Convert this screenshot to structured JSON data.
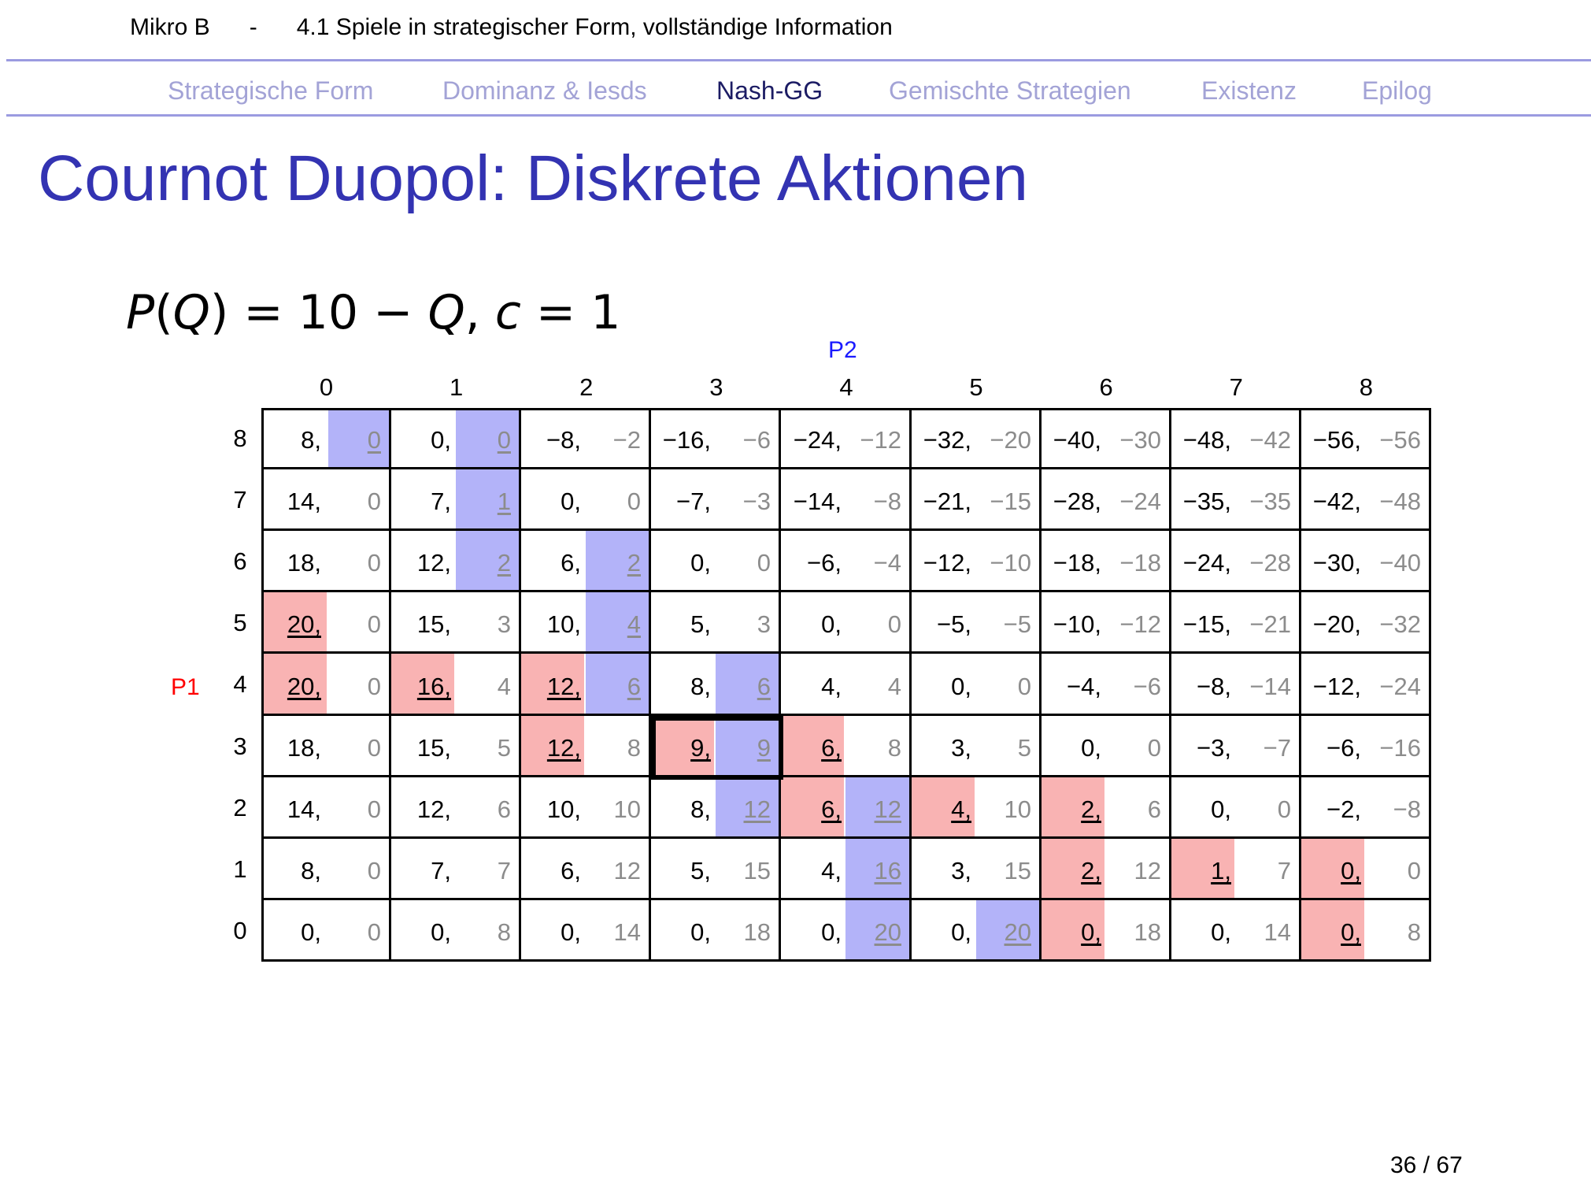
{
  "header": {
    "course": "Mikro B",
    "separator": "-",
    "chapter": "4.1 Spiele in strategischer Form, vollständige Information"
  },
  "nav": [
    {
      "label": "Strategische Form",
      "active": false
    },
    {
      "label": "Dominanz & Iesds",
      "active": false
    },
    {
      "label": "Nash-GG",
      "active": true
    },
    {
      "label": "Gemischte Strategien",
      "active": false
    },
    {
      "label": "Existenz",
      "active": false
    },
    {
      "label": "Epilog",
      "active": false
    }
  ],
  "title": "Cournot Duopol: Diskrete Aktionen",
  "formula": {
    "P": "P",
    "open": "(",
    "Q1": "Q",
    "close": ")",
    "eq1": " = 10 − ",
    "Q2": "Q",
    "comma": ", ",
    "c": "c",
    "eq2": " = 1"
  },
  "players": {
    "p1": "P1",
    "p2": "P2"
  },
  "columns": [
    "0",
    "1",
    "2",
    "3",
    "4",
    "5",
    "6",
    "7",
    "8"
  ],
  "rows": [
    "8",
    "7",
    "6",
    "5",
    "4",
    "3",
    "2",
    "1",
    "0"
  ],
  "payoffs": [
    [
      [
        "8,",
        "0"
      ],
      [
        "0,",
        "0"
      ],
      [
        "−8,",
        "−2"
      ],
      [
        "−16,",
        "−6"
      ],
      [
        "−24,",
        "−12"
      ],
      [
        "−32,",
        "−20"
      ],
      [
        "−40,",
        "−30"
      ],
      [
        "−48,",
        "−42"
      ],
      [
        "−56,",
        "−56"
      ]
    ],
    [
      [
        "14,",
        "0"
      ],
      [
        "7,",
        "1"
      ],
      [
        "0,",
        "0"
      ],
      [
        "−7,",
        "−3"
      ],
      [
        "−14,",
        "−8"
      ],
      [
        "−21,",
        "−15"
      ],
      [
        "−28,",
        "−24"
      ],
      [
        "−35,",
        "−35"
      ],
      [
        "−42,",
        "−48"
      ]
    ],
    [
      [
        "18,",
        "0"
      ],
      [
        "12,",
        "2"
      ],
      [
        "6,",
        "2"
      ],
      [
        "0,",
        "0"
      ],
      [
        "−6,",
        "−4"
      ],
      [
        "−12,",
        "−10"
      ],
      [
        "−18,",
        "−18"
      ],
      [
        "−24,",
        "−28"
      ],
      [
        "−30,",
        "−40"
      ]
    ],
    [
      [
        "20,",
        "0"
      ],
      [
        "15,",
        "3"
      ],
      [
        "10,",
        "4"
      ],
      [
        "5,",
        "3"
      ],
      [
        "0,",
        "0"
      ],
      [
        "−5,",
        "−5"
      ],
      [
        "−10,",
        "−12"
      ],
      [
        "−15,",
        "−21"
      ],
      [
        "−20,",
        "−32"
      ]
    ],
    [
      [
        "20,",
        "0"
      ],
      [
        "16,",
        "4"
      ],
      [
        "12,",
        "6"
      ],
      [
        "8,",
        "6"
      ],
      [
        "4,",
        "4"
      ],
      [
        "0,",
        "0"
      ],
      [
        "−4,",
        "−6"
      ],
      [
        "−8,",
        "−14"
      ],
      [
        "−12,",
        "−24"
      ]
    ],
    [
      [
        "18,",
        "0"
      ],
      [
        "15,",
        "5"
      ],
      [
        "12,",
        "8"
      ],
      [
        "9,",
        "9"
      ],
      [
        "6,",
        "8"
      ],
      [
        "3,",
        "5"
      ],
      [
        "0,",
        "0"
      ],
      [
        "−3,",
        "−7"
      ],
      [
        "−6,",
        "−16"
      ]
    ],
    [
      [
        "14,",
        "0"
      ],
      [
        "12,",
        "6"
      ],
      [
        "10,",
        "10"
      ],
      [
        "8,",
        "12"
      ],
      [
        "6,",
        "12"
      ],
      [
        "4,",
        "10"
      ],
      [
        "2,",
        "6"
      ],
      [
        "0,",
        "0"
      ],
      [
        "−2,",
        "−8"
      ]
    ],
    [
      [
        "8,",
        "0"
      ],
      [
        "7,",
        "7"
      ],
      [
        "6,",
        "12"
      ],
      [
        "5,",
        "15"
      ],
      [
        "4,",
        "16"
      ],
      [
        "3,",
        "15"
      ],
      [
        "2,",
        "12"
      ],
      [
        "1,",
        "7"
      ],
      [
        "0,",
        "0"
      ]
    ],
    [
      [
        "0,",
        "0"
      ],
      [
        "0,",
        "8"
      ],
      [
        "0,",
        "14"
      ],
      [
        "0,",
        "18"
      ],
      [
        "0,",
        "20"
      ],
      [
        "0,",
        "20"
      ],
      [
        "0,",
        "18"
      ],
      [
        "0,",
        "14"
      ],
      [
        "0,",
        "8"
      ]
    ]
  ],
  "best_response_p1": [
    [
      3,
      0
    ],
    [
      4,
      0
    ],
    [
      4,
      1
    ],
    [
      4,
      2
    ],
    [
      5,
      2
    ],
    [
      5,
      3
    ],
    [
      5,
      4
    ],
    [
      6,
      4
    ],
    [
      6,
      5
    ],
    [
      6,
      6
    ],
    [
      7,
      6
    ],
    [
      8,
      6
    ],
    [
      7,
      7
    ],
    [
      7,
      8
    ],
    [
      8,
      8
    ]
  ],
  "best_response_p2": [
    [
      0,
      0
    ],
    [
      0,
      1
    ],
    [
      1,
      1
    ],
    [
      2,
      1
    ],
    [
      2,
      2
    ],
    [
      3,
      2
    ],
    [
      4,
      2
    ],
    [
      4,
      3
    ],
    [
      5,
      3
    ],
    [
      6,
      3
    ],
    [
      6,
      4
    ],
    [
      7,
      4
    ],
    [
      8,
      4
    ],
    [
      8,
      5
    ]
  ],
  "nash_equilibrium": [
    5,
    3
  ],
  "colors": {
    "p1_highlight": "#f9b3b3",
    "p2_highlight": "#b3b3f9",
    "title": "#3333b2",
    "p1_label": "#ff0000",
    "p2_label": "#1a1aff"
  },
  "page": {
    "current": "36",
    "sep": " / ",
    "total": "67"
  }
}
